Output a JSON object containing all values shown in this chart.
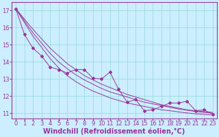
{
  "title": "",
  "xlabel": "Windchill (Refroidissement éolien,°C)",
  "ylabel": "",
  "bg_color": "#cceeff",
  "grid_color": "#99dddd",
  "line_color": "#993399",
  "marker_color": "#993399",
  "xlim": [
    -0.5,
    23.5
  ],
  "ylim": [
    10.7,
    17.5
  ],
  "yticks": [
    11,
    12,
    13,
    14,
    15,
    16,
    17
  ],
  "xticks": [
    0,
    1,
    2,
    3,
    4,
    5,
    6,
    7,
    8,
    9,
    10,
    11,
    12,
    13,
    14,
    15,
    16,
    17,
    18,
    19,
    20,
    21,
    22,
    23
  ],
  "x": [
    0,
    1,
    2,
    3,
    4,
    5,
    6,
    7,
    8,
    9,
    10,
    11,
    12,
    13,
    14,
    15,
    16,
    17,
    18,
    19,
    20,
    21,
    22,
    23
  ],
  "y_zigzag": [
    17.1,
    15.6,
    14.8,
    14.35,
    13.7,
    13.55,
    13.35,
    13.55,
    13.55,
    13.05,
    13.0,
    13.4,
    12.4,
    11.65,
    11.8,
    11.15,
    11.2,
    11.4,
    11.6,
    11.6,
    11.7,
    11.15,
    11.2,
    10.95
  ],
  "y_trend1": [
    17.1,
    16.5,
    15.9,
    15.35,
    14.8,
    14.35,
    13.9,
    13.55,
    13.2,
    12.95,
    12.7,
    12.5,
    12.3,
    12.1,
    11.95,
    11.8,
    11.65,
    11.5,
    11.4,
    11.3,
    11.2,
    11.15,
    11.1,
    11.05
  ],
  "y_trend2": [
    17.1,
    16.4,
    15.7,
    15.1,
    14.5,
    14.0,
    13.6,
    13.25,
    12.95,
    12.7,
    12.45,
    12.25,
    12.1,
    11.95,
    11.8,
    11.65,
    11.55,
    11.45,
    11.35,
    11.25,
    11.18,
    11.1,
    11.05,
    11.0
  ],
  "y_trend3": [
    17.1,
    16.3,
    15.5,
    14.85,
    14.2,
    13.65,
    13.2,
    12.85,
    12.55,
    12.3,
    12.1,
    11.9,
    11.75,
    11.6,
    11.5,
    11.4,
    11.3,
    11.2,
    11.15,
    11.08,
    11.02,
    10.97,
    10.93,
    10.9
  ],
  "xlabel_fontsize": 7,
  "tick_fontsize": 6,
  "tick_color": "#993399",
  "spine_color": "#993399"
}
